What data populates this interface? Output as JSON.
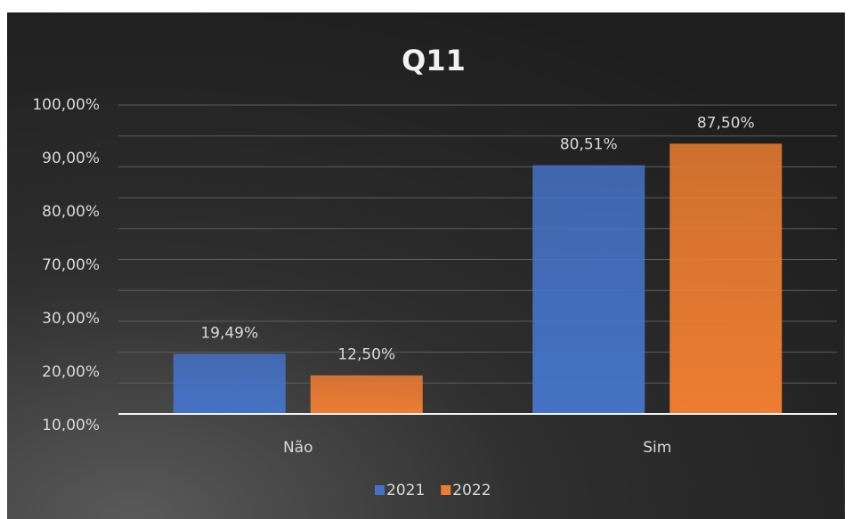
{
  "chart_data": {
    "type": "bar",
    "title": "Q11",
    "categories": [
      "Não",
      "Sim"
    ],
    "series": [
      {
        "name": "2021",
        "color": "#4472c4",
        "values": [
          19.49,
          80.51
        ],
        "value_labels": [
          "19,49%",
          "80,51%"
        ]
      },
      {
        "name": "2022",
        "color": "#ed7d31",
        "values": [
          12.5,
          87.5
        ],
        "value_labels": [
          "12,50%",
          "87,50%"
        ]
      }
    ],
    "ylim": [
      0,
      100
    ],
    "yticks": [
      {
        "value": 100,
        "label": "100,00%"
      },
      {
        "value": 90,
        "label": "90,00%"
      },
      {
        "value": 80,
        "label": "80,00%"
      },
      {
        "value": 70,
        "label": "70,00%"
      },
      {
        "value": 30,
        "label": "30,00%"
      },
      {
        "value": 20,
        "label": "20,00%"
      },
      {
        "value": 10,
        "label": "10,00%"
      }
    ],
    "grid": true,
    "legend": "bottom"
  }
}
